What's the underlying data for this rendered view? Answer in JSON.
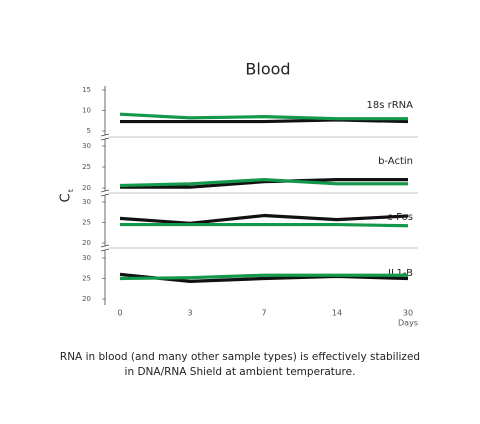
{
  "chart_data": {
    "type": "line",
    "title": "Blood",
    "y_label": {
      "main": "C",
      "sub": "t"
    },
    "x_label": "Days",
    "categories": [
      "0",
      "3",
      "7",
      "14",
      "30"
    ],
    "panels": [
      {
        "label": "18s rRNA",
        "ylim": [
          5,
          15
        ],
        "yticks": [
          15,
          10,
          5
        ],
        "series": [
          {
            "color": "#111111",
            "values": [
              7.3,
              7.3,
              7.3,
              7.7,
              7.3
            ]
          },
          {
            "color": "#14984a",
            "values": [
              9.1,
              8.2,
              8.5,
              8.0,
              8.0
            ]
          }
        ]
      },
      {
        "label": "b-Actin",
        "ylim": [
          20,
          30
        ],
        "yticks": [
          30,
          25,
          20
        ],
        "series": [
          {
            "color": "#111111",
            "values": [
              20.2,
              20.2,
              21.5,
              22.0,
              22.0
            ]
          },
          {
            "color": "#14984a",
            "values": [
              20.6,
              21.0,
              22.0,
              21.0,
              21.0
            ]
          }
        ]
      },
      {
        "label": "c-Fos",
        "ylim": [
          20,
          30
        ],
        "yticks": [
          30,
          25,
          20
        ],
        "series": [
          {
            "color": "#111111",
            "values": [
              26.0,
              24.8,
              26.7,
              25.7,
              26.6
            ]
          },
          {
            "color": "#14984a",
            "values": [
              24.5,
              24.5,
              24.5,
              24.5,
              24.2
            ]
          }
        ]
      },
      {
        "label": "IL1-B",
        "ylim": [
          20,
          30
        ],
        "yticks": [
          30,
          25,
          20
        ],
        "series": [
          {
            "color": "#111111",
            "values": [
              26.0,
              24.3,
              25.0,
              25.5,
              25.0
            ]
          },
          {
            "color": "#14984a",
            "values": [
              25.0,
              25.2,
              25.8,
              25.8,
              25.8
            ]
          }
        ]
      }
    ]
  },
  "caption": [
    "RNA in blood (and many other sample types) is effectively stabilized",
    "in DNA/RNA Shield at ambient temperature."
  ]
}
